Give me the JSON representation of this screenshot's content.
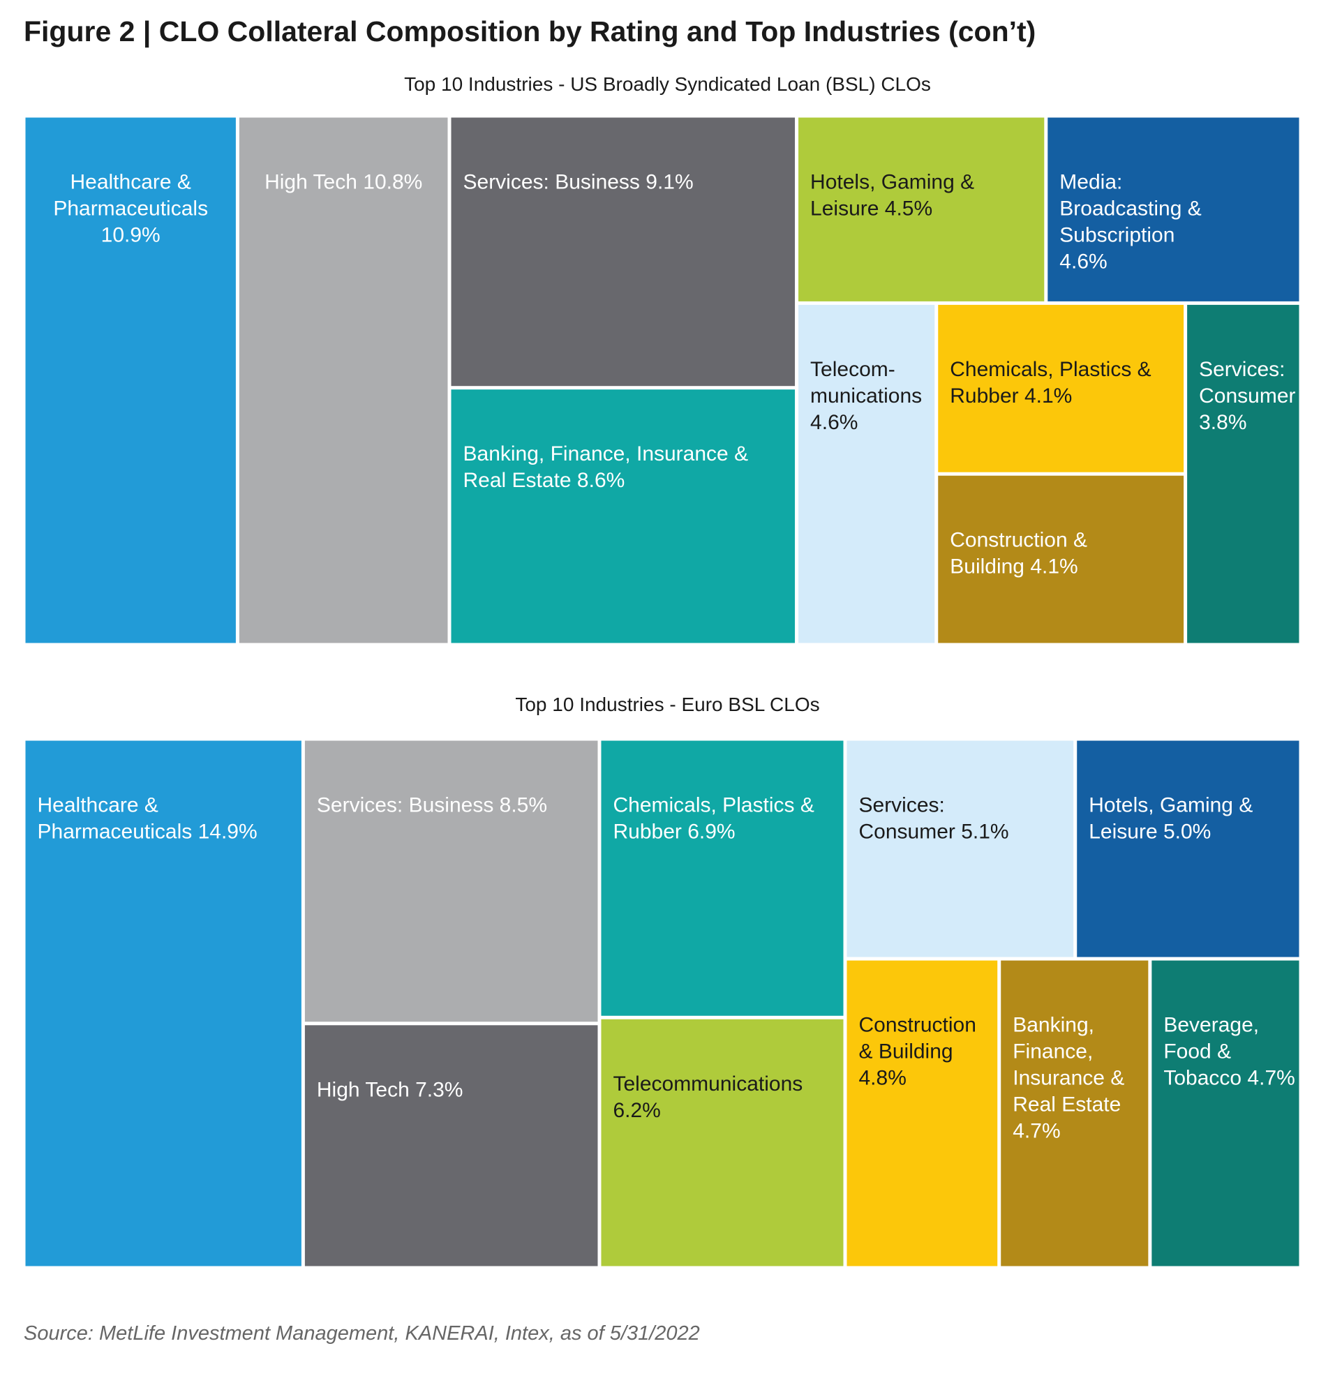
{
  "figure": {
    "title": "Figure 2  |  CLO Collateral Composition by Rating and Top Industries (con’t)",
    "source": "Source: MetLife Investment Management, KANERAI, Intex, as of 5/31/2022"
  },
  "palette": {
    "blue": "#229bd7",
    "light_gray": "#acadaf",
    "dark_gray": "#68686d",
    "teal": "#10a8a5",
    "lime": "#afcb3b",
    "navy": "#145fa2",
    "pale_blue": "#d4ebfa",
    "yellow": "#fcc70a",
    "gold": "#b38a18",
    "dark_teal": "#0e7d73",
    "label_light": "#ffffff",
    "label_dark": "#1a1a1a"
  },
  "chart_data": [
    {
      "type": "treemap",
      "title": "Top 10 Industries - US Broadly Syndicated Loan (BSL) CLOs",
      "unit": "%",
      "items": [
        {
          "name": "Healthcare & Pharmaceuticals",
          "value": 10.9,
          "label": [
            "Healthcare &",
            "Pharmaceuticals",
            "10.9%"
          ],
          "color": "#229bd7",
          "label_color": "light",
          "align": "center"
        },
        {
          "name": "High Tech",
          "value": 10.8,
          "label": [
            "High Tech 10.8%"
          ],
          "color": "#acadaf",
          "label_color": "light",
          "align": "center"
        },
        {
          "name": "Services: Business",
          "value": 9.1,
          "label": [
            "Services: Business 9.1%"
          ],
          "color": "#68686d",
          "label_color": "light",
          "align": "left"
        },
        {
          "name": "Banking, Finance, Insurance & Real Estate",
          "value": 8.6,
          "label": [
            "Banking, Finance, Insurance &",
            "Real Estate 8.6%"
          ],
          "color": "#10a8a5",
          "label_color": "light",
          "align": "left"
        },
        {
          "name": "Hotels, Gaming & Leisure",
          "value": 4.5,
          "label": [
            "Hotels, Gaming &",
            "Leisure 4.5%"
          ],
          "color": "#afcb3b",
          "label_color": "dark",
          "align": "left"
        },
        {
          "name": "Media: Broadcasting & Subscription",
          "value": 4.6,
          "label": [
            "Media:",
            "Broadcasting &",
            "Subscription",
            "4.6%"
          ],
          "color": "#145fa2",
          "label_color": "light",
          "align": "left"
        },
        {
          "name": "Telecommunications",
          "value": 4.6,
          "label": [
            "Telecom-",
            "munications",
            "4.6%"
          ],
          "color": "#d4ebfa",
          "label_color": "dark",
          "align": "left"
        },
        {
          "name": "Chemicals, Plastics & Rubber",
          "value": 4.1,
          "label": [
            "Chemicals, Plastics &",
            "Rubber 4.1%"
          ],
          "color": "#fcc70a",
          "label_color": "dark",
          "align": "left"
        },
        {
          "name": "Construction & Building",
          "value": 4.1,
          "label": [
            "Construction &",
            "Building 4.1%"
          ],
          "color": "#b38a18",
          "label_color": "light",
          "align": "left"
        },
        {
          "name": "Services: Consumer",
          "value": 3.8,
          "label": [
            "Services:",
            "Consumer",
            "3.8%"
          ],
          "color": "#0e7d73",
          "label_color": "light",
          "align": "left"
        }
      ]
    },
    {
      "type": "treemap",
      "title": "Top 10 Industries - Euro BSL CLOs",
      "unit": "%",
      "items": [
        {
          "name": "Healthcare & Pharmaceuticals",
          "value": 14.9,
          "label": [
            "Healthcare &",
            "Pharmaceuticals 14.9%"
          ],
          "color": "#229bd7",
          "label_color": "light",
          "align": "left"
        },
        {
          "name": "Services: Business",
          "value": 8.5,
          "label": [
            "Services: Business 8.5%"
          ],
          "color": "#acadaf",
          "label_color": "light",
          "align": "left"
        },
        {
          "name": "High Tech",
          "value": 7.3,
          "label": [
            "High Tech 7.3%"
          ],
          "color": "#68686d",
          "label_color": "light",
          "align": "left"
        },
        {
          "name": "Chemicals, Plastics & Rubber",
          "value": 6.9,
          "label": [
            "Chemicals, Plastics &",
            "Rubber 6.9%"
          ],
          "color": "#10a8a5",
          "label_color": "light",
          "align": "left"
        },
        {
          "name": "Telecommunications",
          "value": 6.2,
          "label": [
            "Telecommunications",
            "6.2%"
          ],
          "color": "#afcb3b",
          "label_color": "dark",
          "align": "left"
        },
        {
          "name": "Services: Consumer",
          "value": 5.1,
          "label": [
            "Services:",
            "Consumer 5.1%"
          ],
          "color": "#d4ebfa",
          "label_color": "dark",
          "align": "left"
        },
        {
          "name": "Hotels, Gaming & Leisure",
          "value": 5.0,
          "label": [
            "Hotels, Gaming &",
            "Leisure 5.0%"
          ],
          "color": "#145fa2",
          "label_color": "light",
          "align": "left"
        },
        {
          "name": "Construction & Building",
          "value": 4.8,
          "label": [
            "Construction",
            "& Building",
            "4.8%"
          ],
          "color": "#fcc70a",
          "label_color": "dark",
          "align": "left"
        },
        {
          "name": "Banking, Finance, Insurance & Real Estate",
          "value": 4.7,
          "label": [
            "Banking,",
            "Finance,",
            "Insurance &",
            "Real Estate",
            "4.7%"
          ],
          "color": "#b38a18",
          "label_color": "light",
          "align": "left"
        },
        {
          "name": "Beverage, Food & Tobacco",
          "value": 4.7,
          "label": [
            "Beverage,",
            "Food &",
            "Tobacco 4.7%"
          ],
          "color": "#0e7d73",
          "label_color": "light",
          "align": "left"
        }
      ]
    }
  ]
}
